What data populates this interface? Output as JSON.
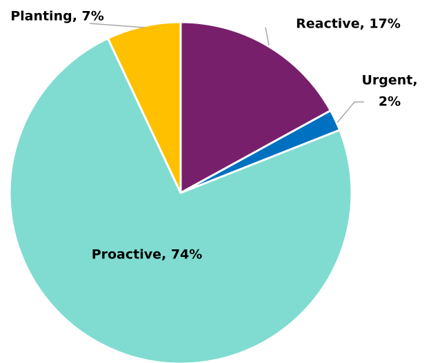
{
  "chart_data": {
    "type": "pie",
    "title": "",
    "slices": [
      {
        "name": "Reactive",
        "value": 17,
        "label_lines": [
          "Reactive, 17%"
        ],
        "color": "#781F6B"
      },
      {
        "name": "Urgent",
        "value": 2,
        "label_lines": [
          "Urgent,",
          "2%"
        ],
        "color": "#0070C0"
      },
      {
        "name": "Proactive",
        "value": 74,
        "label_lines": [
          "Proactive, 74%"
        ],
        "color": "#80DCD0"
      },
      {
        "name": "Planting",
        "value": 7,
        "label_lines": [
          "Planting, 7%"
        ],
        "color": "#FFC000"
      }
    ],
    "start_angle_deg": 0,
    "direction": "clockwise",
    "legend": "none"
  }
}
